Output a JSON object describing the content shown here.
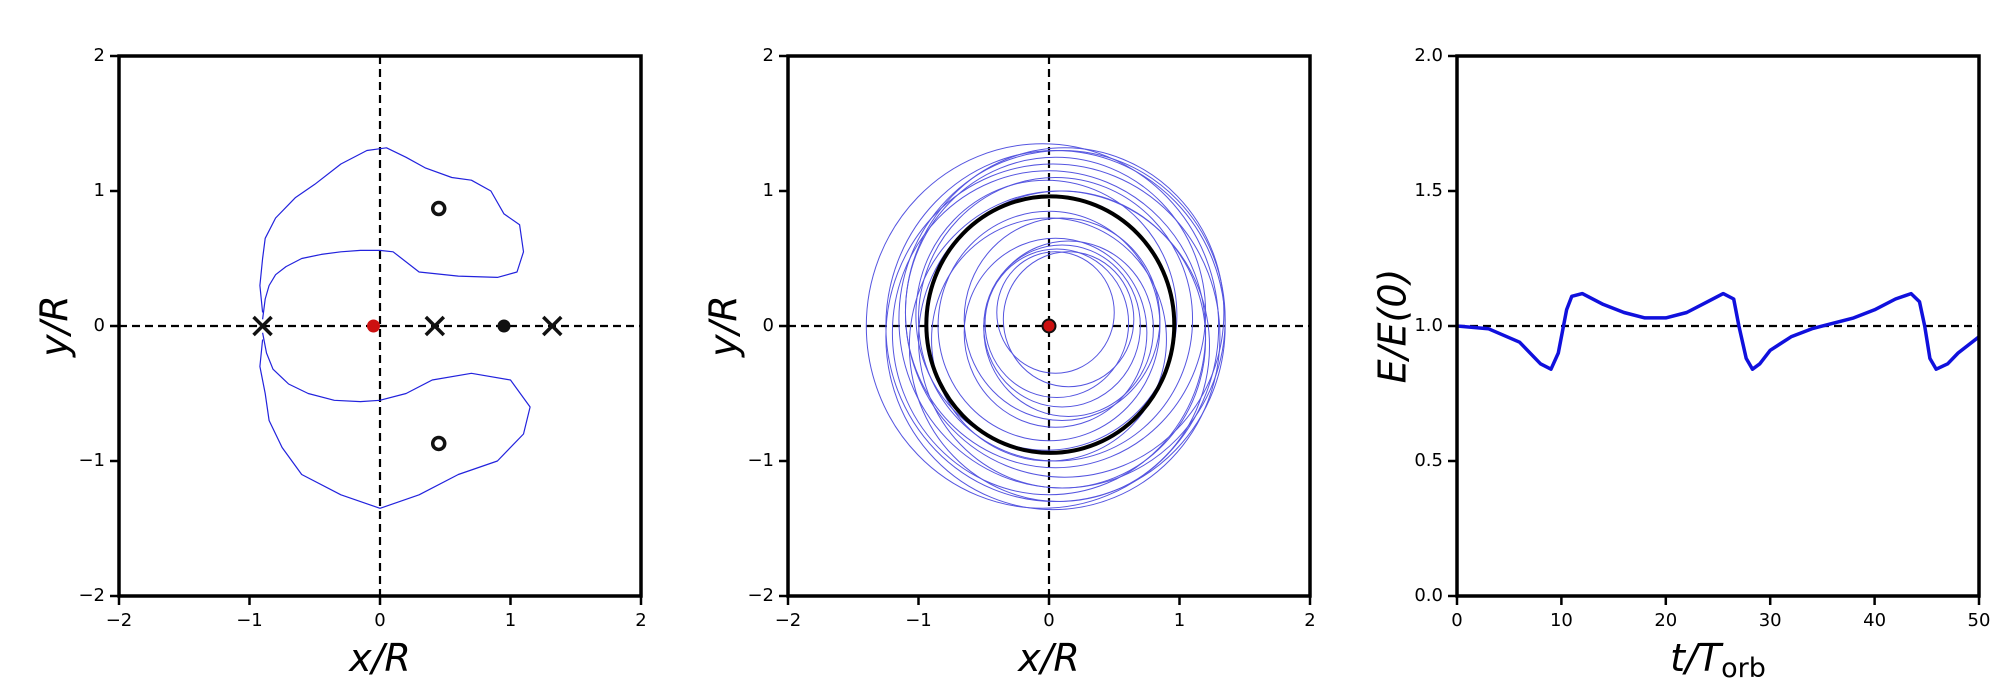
{
  "chart_data": [
    {
      "type": "line",
      "xlabel": "x/R",
      "ylabel": "y/R",
      "xlim": [
        -2,
        2
      ],
      "ylim": [
        -2,
        2
      ],
      "xticks": [
        {
          "value": -2,
          "label": "−2"
        },
        {
          "value": -1,
          "label": "−1"
        },
        0,
        1,
        2
      ],
      "yticks": [
        {
          "value": -2,
          "label": "−2"
        },
        {
          "value": -1,
          "label": "−1"
        },
        0,
        1,
        2
      ],
      "hline": 0,
      "vline": 0,
      "series": [
        {
          "color": "#2222dd",
          "width": 1.2,
          "x": [
            -0.9,
            -0.88,
            -0.85,
            -0.8,
            -0.72,
            -0.6,
            -0.45,
            -0.3,
            -0.15,
            0,
            0.1,
            0.3,
            0.6,
            0.9,
            1.05,
            1.1,
            1.07,
            0.95,
            0.85,
            0.7,
            0.55,
            0.35,
            0.2,
            0.05,
            -0.1,
            -0.3,
            -0.5,
            -0.65,
            -0.8,
            -0.88,
            -0.9,
            -0.92,
            -0.9,
            null,
            -0.9,
            -0.87,
            -0.82,
            -0.7,
            -0.55,
            -0.35,
            -0.15,
            0,
            0.2,
            0.4,
            0.7,
            1.0,
            1.15,
            1.1,
            0.9,
            0.6,
            0.3,
            0,
            -0.3,
            -0.6,
            -0.75,
            -0.85,
            -0.88,
            -0.92,
            -0.9
          ],
          "y": [
            0.05,
            0.2,
            0.3,
            0.38,
            0.44,
            0.5,
            0.53,
            0.55,
            0.56,
            0.56,
            0.55,
            0.4,
            0.37,
            0.36,
            0.4,
            0.55,
            0.75,
            0.83,
            1.0,
            1.08,
            1.1,
            1.17,
            1.25,
            1.32,
            1.3,
            1.2,
            1.05,
            0.95,
            0.8,
            0.65,
            0.5,
            0.3,
            0.1,
            null,
            -0.05,
            -0.2,
            -0.32,
            -0.43,
            -0.5,
            -0.55,
            -0.56,
            -0.55,
            -0.5,
            -0.4,
            -0.35,
            -0.4,
            -0.6,
            -0.8,
            -1.0,
            -1.1,
            -1.25,
            -1.35,
            -1.25,
            -1.1,
            -0.9,
            -0.7,
            -0.5,
            -0.3,
            -0.1
          ]
        }
      ],
      "markers": [
        {
          "marker": "dot",
          "color": "#cc1111",
          "x": [
            -0.05
          ],
          "y": [
            0
          ]
        },
        {
          "marker": "dot",
          "color": "#111111",
          "x": [
            0.95
          ],
          "y": [
            0
          ]
        },
        {
          "marker": "ring",
          "color": "#111111",
          "x": [
            0.45,
            0.45
          ],
          "y": [
            0.87,
            -0.87
          ]
        },
        {
          "marker": "cross",
          "color": "#111111",
          "x": [
            -0.9,
            0.42,
            1.32
          ],
          "y": [
            0,
            0,
            0
          ]
        }
      ]
    },
    {
      "type": "circle",
      "xlabel": "x/R",
      "ylabel": "y/R",
      "xlim": [
        -2,
        2
      ],
      "ylim": [
        -2,
        2
      ],
      "xticks": [
        {
          "value": -2,
          "label": "−2"
        },
        {
          "value": -1,
          "label": "−1"
        },
        0,
        1,
        2
      ],
      "yticks": [
        {
          "value": -2,
          "label": "−2"
        },
        {
          "value": -1,
          "label": "−1"
        },
        0,
        1,
        2
      ],
      "hline": 0,
      "vline": 0,
      "series": [
        {
          "color": "#5555e0",
          "width": 1,
          "circles": [
            {
              "cx": 0.05,
              "cy": 0,
              "r": 1.3
            },
            {
              "cx": 0.1,
              "cy": 0.05,
              "r": 1.25
            },
            {
              "cx": 0,
              "cy": -0.05,
              "r": 1.2
            },
            {
              "cx": 0.05,
              "cy": 0.1,
              "r": 1.15
            },
            {
              "cx": -0.05,
              "cy": 0,
              "r": 1.35
            },
            {
              "cx": 0.1,
              "cy": -0.1,
              "r": 1.1
            },
            {
              "cx": 0.05,
              "cy": 0.05,
              "r": 1.05
            },
            {
              "cx": 0,
              "cy": 0,
              "r": 0.85
            },
            {
              "cx": 0.1,
              "cy": 0.05,
              "r": 0.75
            },
            {
              "cx": 0.05,
              "cy": -0.05,
              "r": 0.7
            },
            {
              "cx": 0.1,
              "cy": 0,
              "r": 0.6
            },
            {
              "cx": 0.15,
              "cy": 0.05,
              "r": 0.5
            },
            {
              "cx": 0.05,
              "cy": 0.1,
              "r": 0.45
            },
            {
              "cx": 0,
              "cy": -0.1,
              "r": 0.9
            },
            {
              "cx": 0.08,
              "cy": -0.15,
              "r": 1.15
            },
            {
              "cx": -0.02,
              "cy": 0.08,
              "r": 1.0
            },
            {
              "cx": 0.12,
              "cy": 0.1,
              "r": 1.22
            },
            {
              "cx": 0.03,
              "cy": -0.08,
              "r": 1.28
            },
            {
              "cx": 0.15,
              "cy": -0.02,
              "r": 0.65
            },
            {
              "cx": 0.06,
              "cy": 0.02,
              "r": 0.55
            }
          ]
        },
        {
          "color": "#000000",
          "width": 4,
          "circles": [
            {
              "cx": 0.01,
              "cy": 0.01,
              "r": 0.95
            }
          ]
        }
      ],
      "markers": [
        {
          "marker": "dot",
          "color": "#cc1111",
          "edgecolor": "#111111",
          "x": [
            0
          ],
          "y": [
            0
          ]
        }
      ]
    },
    {
      "type": "line",
      "xlabel": "t/T",
      "xlabel_subscript": "orb",
      "ylabel": "E/E(0)",
      "xlim": [
        0,
        50
      ],
      "ylim": [
        0,
        2
      ],
      "xticks": [
        0,
        10,
        20,
        30,
        40,
        50
      ],
      "yticks": [
        {
          "value": 0,
          "label": "0.0"
        },
        {
          "value": 0.5,
          "label": "0.5"
        },
        {
          "value": 1,
          "label": "1.0"
        },
        {
          "value": 1.5,
          "label": "1.5"
        },
        {
          "value": 2,
          "label": "2.0"
        }
      ],
      "hline": 1,
      "series": [
        {
          "color": "#1010dd",
          "width": 3.5,
          "x": [
            0,
            3,
            6,
            8,
            9,
            9.7,
            10.5,
            11,
            12,
            14,
            16,
            18,
            20,
            22,
            24,
            25.5,
            26.5,
            27,
            27.7,
            28.3,
            29,
            30,
            32,
            34,
            36,
            38,
            40,
            42,
            43.5,
            44.3,
            44.8,
            45.3,
            45.9,
            47,
            48,
            50
          ],
          "y": [
            1.0,
            0.99,
            0.94,
            0.86,
            0.84,
            0.9,
            1.06,
            1.11,
            1.12,
            1.08,
            1.05,
            1.03,
            1.03,
            1.05,
            1.09,
            1.12,
            1.1,
            1.0,
            0.88,
            0.84,
            0.86,
            0.91,
            0.96,
            0.99,
            1.01,
            1.03,
            1.06,
            1.1,
            1.12,
            1.09,
            1.0,
            0.88,
            0.84,
            0.86,
            0.9,
            0.96
          ]
        }
      ]
    }
  ]
}
